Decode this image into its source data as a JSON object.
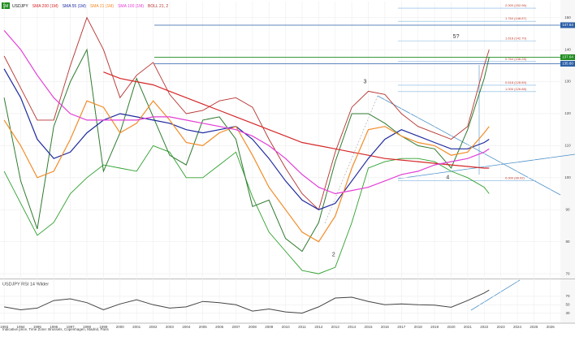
{
  "chart_data": [
    {
      "type": "line",
      "title": "USDJPY",
      "interval": "1M",
      "footnote": "Indicative price. Time Zone: Brussels, Copenhagen, Madrid, Paris",
      "x": [
        1993,
        1994,
        1995,
        1996,
        1997,
        1998,
        1999,
        2000,
        2001,
        2002,
        2003,
        2004,
        2005,
        2006,
        2007,
        2008,
        2009,
        2010,
        2011,
        2012,
        2013,
        2014,
        2015,
        2016,
        2017,
        2018,
        2019,
        2020,
        2021,
        2022,
        2022.3
      ],
      "xlim": [
        1992.75,
        2026.6
      ],
      "xticks": [
        1993,
        1994,
        1995,
        1996,
        1997,
        1998,
        1999,
        2000,
        2001,
        2002,
        2003,
        2004,
        2005,
        2006,
        2007,
        2008,
        2009,
        2010,
        2011,
        2012,
        2013,
        2014,
        2015,
        2016,
        2017,
        2018,
        2019,
        2020,
        2021,
        2022,
        2023,
        2024,
        2025,
        2026
      ],
      "ylim": [
        68.5,
        155
      ],
      "yticks": [
        70,
        80,
        90,
        100,
        110,
        120,
        130,
        140,
        150
      ],
      "series": [
        {
          "name": "USDJPY",
          "color": "#2f7a2f",
          "values": [
            125,
            99,
            84,
            116,
            130,
            140,
            102,
            114,
            131,
            119,
            107,
            104,
            118,
            119,
            112,
            91,
            93,
            81,
            77,
            86,
            105,
            120,
            120,
            117,
            113,
            110,
            109,
            103,
            115,
            131,
            137.6
          ]
        },
        {
          "name": "SMA 200 (1M)",
          "color": "#d62728",
          "values": [
            null,
            null,
            null,
            null,
            null,
            null,
            133,
            131,
            130,
            129,
            127,
            125,
            123,
            121,
            119,
            117,
            115,
            113,
            111,
            110,
            109,
            108,
            107,
            106,
            105.5,
            105,
            104.5,
            104,
            103.5,
            103,
            103
          ]
        },
        {
          "name": "SMA 55 (1M)",
          "color": "#1f2a9e",
          "values": [
            134,
            125,
            112,
            106,
            108,
            114,
            118,
            120,
            119,
            118,
            117,
            115,
            114,
            115,
            116,
            112,
            106,
            99,
            93,
            90,
            92,
            99,
            106,
            112,
            115,
            113,
            111,
            109,
            109,
            111,
            112
          ]
        },
        {
          "name": "SMA 21 (1M)",
          "color": "#f28c28",
          "values": [
            118,
            110,
            100,
            102,
            112,
            124,
            122,
            114,
            117,
            124,
            118,
            111,
            110,
            114,
            116,
            107,
            97,
            90,
            83,
            80,
            88,
            103,
            115,
            116,
            113,
            111,
            110,
            107,
            108,
            114,
            116
          ]
        },
        {
          "name": "SMA 100 (1M)",
          "color": "#e23fd6",
          "values": [
            146,
            140,
            132,
            125,
            120,
            118,
            118,
            118,
            118,
            119,
            119,
            118,
            117,
            116,
            115,
            113,
            110,
            106,
            101,
            97,
            95,
            96,
            97,
            99,
            101,
            102,
            104,
            105,
            106,
            108,
            109
          ]
        }
      ],
      "bollinger": {
        "name": "BOLL 21, 2",
        "upper_color": "#b5332e",
        "lower_color": "#2ea02e",
        "upper": [
          138,
          128,
          118,
          118,
          135,
          150,
          140,
          125,
          132,
          136,
          126,
          120,
          121,
          124,
          125,
          122,
          112,
          103,
          95,
          90,
          108,
          122,
          127,
          126,
          120,
          116,
          114,
          112,
          116,
          135,
          140
        ],
        "lower": [
          102,
          92,
          82,
          86,
          95,
          100,
          104,
          103,
          102,
          110,
          108,
          100,
          100,
          104,
          108,
          94,
          83,
          77,
          71,
          70,
          72,
          86,
          103,
          105,
          106,
          106,
          105,
          102,
          100,
          97,
          95
        ]
      },
      "fib_levels": [
        {
          "label": "2.000 (152.96)",
          "value": 152.96
        },
        {
          "label": "1.764 (148.87)",
          "value": 148.87
        },
        {
          "label": "1.618 (142.70)",
          "value": 142.7
        },
        {
          "label": "0.764 (136.28)",
          "value": 136.28
        },
        {
          "label": "0.618 (128.89)",
          "value": 128.89
        },
        {
          "label": "1.000 (126.88)",
          "value": 126.88
        },
        {
          "label": "0.000 (99.02)",
          "value": 99.02
        }
      ],
      "price_labels": [
        {
          "value": 147.64,
          "label": "147.64",
          "color": "#2b5fa8"
        },
        {
          "value": 137.64,
          "label": "137.64",
          "color": "#1e8c1e"
        },
        {
          "value": 135.6,
          "label": "135.60",
          "color": "#2b5fa8"
        }
      ],
      "annotations": [
        {
          "text": "3",
          "x": 2014.8,
          "y": 130
        },
        {
          "text": "2",
          "x": 2012.9,
          "y": 76
        },
        {
          "text": "4",
          "x": 2019.8,
          "y": 100
        },
        {
          "text": "5?",
          "x": 2020.3,
          "y": 144
        }
      ]
    },
    {
      "type": "line",
      "title": "USDJPY RSI 14 Wilder",
      "x": [
        1993,
        1994,
        1995,
        1996,
        1997,
        1998,
        1999,
        2000,
        2001,
        2002,
        2003,
        2004,
        2005,
        2006,
        2007,
        2008,
        2009,
        2010,
        2011,
        2012,
        2013,
        2014,
        2015,
        2016,
        2017,
        2018,
        2019,
        2020,
        2021,
        2022,
        2022.3
      ],
      "ylim": [
        10,
        95
      ],
      "yticks": [
        30,
        50,
        70
      ],
      "series": [
        {
          "name": "RSI 14",
          "color": "#444444",
          "values": [
            45,
            38,
            42,
            60,
            64,
            55,
            38,
            52,
            62,
            50,
            42,
            45,
            58,
            55,
            50,
            35,
            40,
            33,
            30,
            45,
            66,
            68,
            58,
            50,
            52,
            50,
            49,
            44,
            60,
            78,
            85
          ]
        }
      ]
    }
  ]
}
